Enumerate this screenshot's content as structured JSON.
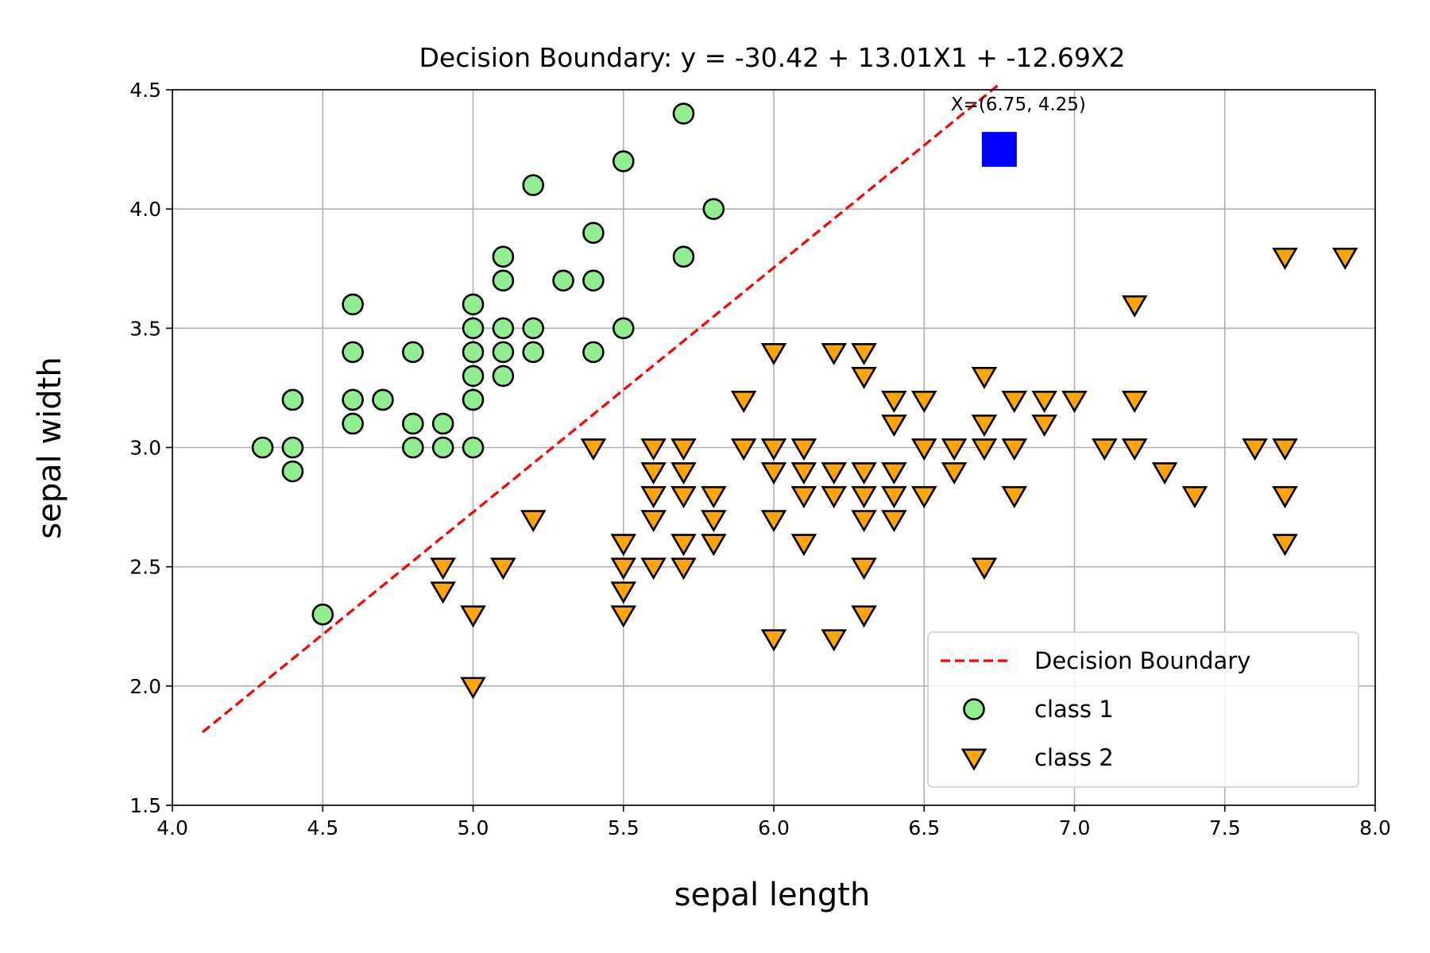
{
  "chart_data": {
    "type": "scatter",
    "title": "Decision Boundary: y = -30.42 + 13.01X1 + -12.69X2",
    "xlabel": "sepal length",
    "ylabel": "sepal width",
    "xlim": [
      4.0,
      8.0
    ],
    "ylim": [
      1.5,
      4.5
    ],
    "xticks": [
      "4.0",
      "4.5",
      "5.0",
      "5.5",
      "6.0",
      "6.5",
      "7.0",
      "7.5",
      "8.0"
    ],
    "yticks": [
      "1.5",
      "2.0",
      "2.5",
      "3.0",
      "3.5",
      "4.0",
      "4.5"
    ],
    "grid": true,
    "legend_position": "lower-right",
    "boundary": {
      "name": "Decision Boundary",
      "color": "#ff0000",
      "style": "dashed",
      "intercept": -30.42,
      "coef_x1": 13.01,
      "coef_x2": -12.69,
      "x_range": [
        4.1,
        6.75
      ]
    },
    "query_point": {
      "label": "X=(6.75, 4.25)",
      "x": 6.75,
      "y": 4.25,
      "color": "#0000ff",
      "marker": "square"
    },
    "series": [
      {
        "name": "class 1",
        "marker": "circle",
        "color": "#90ee90",
        "points": [
          [
            4.3,
            3.0
          ],
          [
            4.4,
            3.0
          ],
          [
            4.4,
            2.9
          ],
          [
            4.4,
            3.2
          ],
          [
            4.5,
            2.3
          ],
          [
            4.6,
            3.1
          ],
          [
            4.6,
            3.2
          ],
          [
            4.6,
            3.4
          ],
          [
            4.6,
            3.6
          ],
          [
            4.7,
            3.2
          ],
          [
            4.8,
            3.0
          ],
          [
            4.8,
            3.1
          ],
          [
            4.8,
            3.4
          ],
          [
            4.9,
            3.0
          ],
          [
            4.9,
            3.1
          ],
          [
            5.0,
            3.0
          ],
          [
            5.0,
            3.2
          ],
          [
            5.0,
            3.3
          ],
          [
            5.0,
            3.4
          ],
          [
            5.0,
            3.5
          ],
          [
            5.0,
            3.6
          ],
          [
            5.1,
            3.3
          ],
          [
            5.1,
            3.4
          ],
          [
            5.1,
            3.5
          ],
          [
            5.1,
            3.7
          ],
          [
            5.1,
            3.8
          ],
          [
            5.2,
            3.4
          ],
          [
            5.2,
            3.5
          ],
          [
            5.2,
            4.1
          ],
          [
            5.3,
            3.7
          ],
          [
            5.4,
            3.4
          ],
          [
            5.4,
            3.7
          ],
          [
            5.4,
            3.9
          ],
          [
            5.5,
            3.5
          ],
          [
            5.5,
            4.2
          ],
          [
            5.7,
            3.8
          ],
          [
            5.7,
            4.4
          ],
          [
            5.8,
            4.0
          ]
        ]
      },
      {
        "name": "class 2",
        "marker": "triangle-down",
        "color": "#ffa500",
        "points": [
          [
            4.9,
            2.5
          ],
          [
            4.9,
            2.4
          ],
          [
            5.0,
            2.3
          ],
          [
            5.0,
            2.0
          ],
          [
            5.1,
            2.5
          ],
          [
            5.2,
            2.7
          ],
          [
            5.4,
            3.0
          ],
          [
            5.5,
            2.6
          ],
          [
            5.5,
            2.5
          ],
          [
            5.5,
            2.4
          ],
          [
            5.5,
            2.3
          ],
          [
            5.6,
            3.0
          ],
          [
            5.6,
            2.9
          ],
          [
            5.6,
            2.8
          ],
          [
            5.6,
            2.7
          ],
          [
            5.6,
            2.5
          ],
          [
            5.7,
            3.0
          ],
          [
            5.7,
            2.9
          ],
          [
            5.7,
            2.8
          ],
          [
            5.7,
            2.6
          ],
          [
            5.7,
            2.5
          ],
          [
            5.8,
            2.8
          ],
          [
            5.8,
            2.7
          ],
          [
            5.8,
            2.6
          ],
          [
            5.9,
            3.2
          ],
          [
            5.9,
            3.0
          ],
          [
            6.0,
            3.4
          ],
          [
            6.0,
            3.0
          ],
          [
            6.0,
            2.9
          ],
          [
            6.0,
            2.7
          ],
          [
            6.0,
            2.2
          ],
          [
            6.1,
            3.0
          ],
          [
            6.1,
            2.9
          ],
          [
            6.1,
            2.8
          ],
          [
            6.1,
            2.6
          ],
          [
            6.2,
            3.4
          ],
          [
            6.2,
            2.9
          ],
          [
            6.2,
            2.8
          ],
          [
            6.2,
            2.2
          ],
          [
            6.3,
            3.4
          ],
          [
            6.3,
            3.3
          ],
          [
            6.3,
            2.9
          ],
          [
            6.3,
            2.8
          ],
          [
            6.3,
            2.7
          ],
          [
            6.3,
            2.5
          ],
          [
            6.3,
            2.3
          ],
          [
            6.4,
            3.2
          ],
          [
            6.4,
            3.1
          ],
          [
            6.4,
            2.9
          ],
          [
            6.4,
            2.8
          ],
          [
            6.4,
            2.7
          ],
          [
            6.5,
            3.2
          ],
          [
            6.5,
            3.0
          ],
          [
            6.5,
            2.8
          ],
          [
            6.6,
            3.0
          ],
          [
            6.6,
            2.9
          ],
          [
            6.7,
            3.3
          ],
          [
            6.7,
            3.1
          ],
          [
            6.7,
            3.0
          ],
          [
            6.7,
            2.5
          ],
          [
            6.8,
            3.2
          ],
          [
            6.8,
            3.0
          ],
          [
            6.8,
            2.8
          ],
          [
            6.9,
            3.2
          ],
          [
            6.9,
            3.1
          ],
          [
            7.0,
            3.2
          ],
          [
            7.1,
            3.0
          ],
          [
            7.2,
            3.6
          ],
          [
            7.2,
            3.2
          ],
          [
            7.2,
            3.0
          ],
          [
            7.3,
            2.9
          ],
          [
            7.4,
            2.8
          ],
          [
            7.6,
            3.0
          ],
          [
            7.7,
            3.8
          ],
          [
            7.7,
            3.0
          ],
          [
            7.7,
            2.8
          ],
          [
            7.7,
            2.6
          ],
          [
            7.9,
            3.8
          ]
        ]
      }
    ]
  }
}
